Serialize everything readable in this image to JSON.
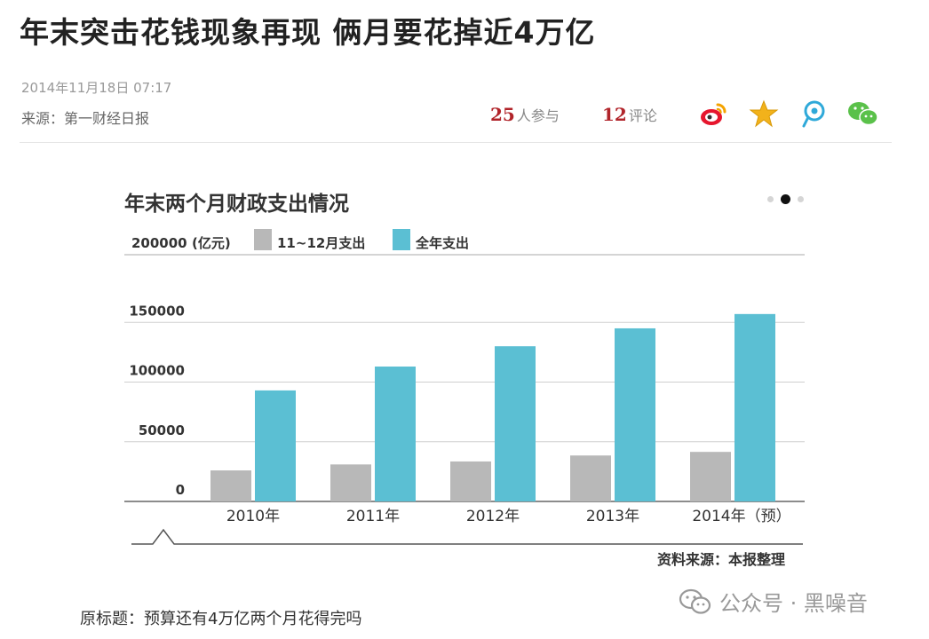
{
  "article": {
    "title": "年末突击花钱现象再现 俩月要花掉近4万亿",
    "datetime": "2014年11月18日 07:17",
    "source": "来源：第一财经日报",
    "participants_count": "25",
    "participants_label": "人参与",
    "comments_count": "12",
    "comments_label": "评论",
    "original_title": "原标题：预算还有4万亿两个月花得完吗"
  },
  "share_icons": [
    "weibo-icon",
    "favorite-star-icon",
    "tencent-weibo-icon",
    "wechat-icon"
  ],
  "watermark": {
    "text": "公众号 · 黑噪音",
    "icon": "wechat-icon"
  },
  "colors": {
    "accent_red": "#b1242a",
    "bar_gray": "#b8b8b8",
    "bar_blue": "#5bbfd3"
  },
  "chart_data": {
    "type": "bar",
    "title": "年末两个月财政支出情况",
    "unit_label": "(亿元)",
    "source": "资料来源：本报整理",
    "categories": [
      "2010年",
      "2011年",
      "2012年",
      "2013年",
      "2014年（预）"
    ],
    "series": [
      {
        "name": "11~12月支出",
        "color": "#b8b8b8",
        "values": [
          26000,
          31000,
          33500,
          38500,
          41500
        ]
      },
      {
        "name": "全年支出",
        "color": "#5bbfd3",
        "values": [
          93000,
          113000,
          130000,
          145000,
          157000
        ]
      }
    ],
    "y_ticks": [
      "0",
      "50000",
      "100000",
      "150000",
      "200000"
    ],
    "ylim": [
      0,
      200000
    ],
    "legend_position": "top-left",
    "grid": true,
    "pager": {
      "count": 3,
      "active": 1
    }
  }
}
